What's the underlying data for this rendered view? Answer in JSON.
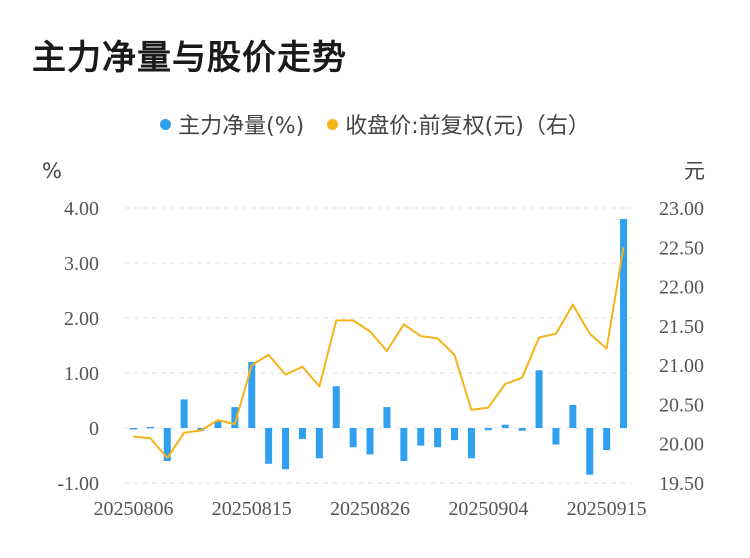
{
  "title": "主力净量与股价走势",
  "legend": {
    "items": [
      {
        "label": "主力净量(%)",
        "color": "#2f9ff0"
      },
      {
        "label": "收盘价:前复权(元)（右）",
        "color": "#f5b21a"
      }
    ]
  },
  "chart_data": {
    "type": "bar+line",
    "left_unit": "%",
    "right_unit": "元",
    "y_left": {
      "min": -1,
      "max": 4,
      "ticks": [
        "4.00",
        "3.00",
        "2.00",
        "1.00",
        "0",
        "-1.00"
      ],
      "tick_values": [
        4,
        3,
        2,
        1,
        0,
        -1
      ]
    },
    "y_right": {
      "min": 19.5,
      "max": 23,
      "ticks": [
        "23.00",
        "22.50",
        "22.00",
        "21.50",
        "21.00",
        "20.50",
        "20.00",
        "19.50"
      ],
      "tick_values": [
        23,
        22.5,
        22,
        21.5,
        21,
        20.5,
        20,
        19.5
      ]
    },
    "x_tick_labels": [
      "20250806",
      "20250815",
      "20250826",
      "20250904",
      "20250915"
    ],
    "x_tick_indices": [
      0,
      7,
      14,
      21,
      28
    ],
    "grid": "horizontal dashed",
    "series": [
      {
        "name": "主力净量(%)",
        "type": "bar",
        "color": "#2f9ff0",
        "values": [
          -0.02,
          0.02,
          -0.6,
          0.52,
          -0.05,
          0.12,
          0.38,
          1.2,
          -0.65,
          -0.75,
          -0.2,
          -0.55,
          0.76,
          -0.35,
          -0.48,
          0.38,
          -0.6,
          -0.32,
          -0.35,
          -0.22,
          -0.55,
          -0.04,
          0.06,
          -0.05,
          1.05,
          -0.3,
          0.42,
          -0.85,
          -0.4,
          3.8
        ]
      },
      {
        "name": "收盘价:前复权(元)（右）",
        "type": "line",
        "color": "#f5b21a",
        "values": [
          20.09,
          20.07,
          19.82,
          20.14,
          20.17,
          20.3,
          20.25,
          21.0,
          21.13,
          20.88,
          20.98,
          20.73,
          21.57,
          21.57,
          21.43,
          21.18,
          21.52,
          21.37,
          21.34,
          21.13,
          20.43,
          20.46,
          20.76,
          20.84,
          21.35,
          21.4,
          21.77,
          21.4,
          21.21,
          22.5
        ]
      }
    ]
  }
}
